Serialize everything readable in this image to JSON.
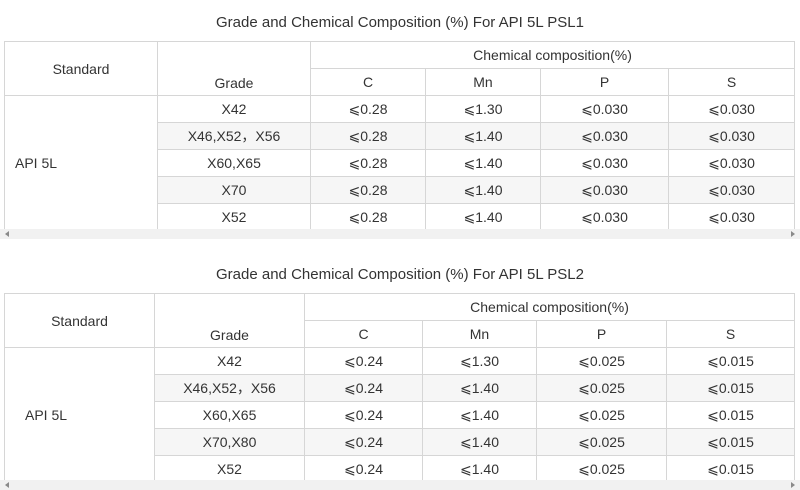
{
  "psl1": {
    "title": "Grade and Chemical Composition (%) For API 5L PSL1",
    "header": {
      "standard": "Standard",
      "grade": "Grade",
      "chemical": "Chemical composition(%)",
      "c": "C",
      "mn": "Mn",
      "p": "P",
      "s": "S"
    },
    "standard_value": "API 5L",
    "rows": [
      {
        "grade": "X42",
        "c": "⩽0.28",
        "mn": "⩽1.30",
        "p": "⩽0.030",
        "s": "⩽0.030"
      },
      {
        "grade": "X46,X52，X56",
        "c": "⩽0.28",
        "mn": "⩽1.40",
        "p": "⩽0.030",
        "s": "⩽0.030"
      },
      {
        "grade": "X60,X65",
        "c": "⩽0.28",
        "mn": "⩽1.40",
        "p": "⩽0.030",
        "s": "⩽0.030"
      },
      {
        "grade": "X70",
        "c": "⩽0.28",
        "mn": "⩽1.40",
        "p": "⩽0.030",
        "s": "⩽0.030"
      },
      {
        "grade": "X52",
        "c": "⩽0.28",
        "mn": "⩽1.40",
        "p": "⩽0.030",
        "s": "⩽0.030"
      }
    ]
  },
  "psl2": {
    "title": "Grade and Chemical Composition (%) For API 5L PSL2",
    "header": {
      "standard": "Standard",
      "grade": "Grade",
      "chemical": "Chemical composition(%)",
      "c": "C",
      "mn": "Mn",
      "p": "P",
      "s": "S"
    },
    "standard_value": "API 5L",
    "rows": [
      {
        "grade": "X42",
        "c": "⩽0.24",
        "mn": "⩽1.30",
        "p": "⩽0.025",
        "s": "⩽0.015"
      },
      {
        "grade": "X46,X52，X56",
        "c": "⩽0.24",
        "mn": "⩽1.40",
        "p": "⩽0.025",
        "s": "⩽0.015"
      },
      {
        "grade": "X60,X65",
        "c": "⩽0.24",
        "mn": "⩽1.40",
        "p": "⩽0.025",
        "s": "⩽0.015"
      },
      {
        "grade": "X70,X80",
        "c": "⩽0.24",
        "mn": "⩽1.40",
        "p": "⩽0.025",
        "s": "⩽0.015"
      },
      {
        "grade": "X52",
        "c": "⩽0.24",
        "mn": "⩽1.40",
        "p": "⩽0.025",
        "s": "⩽0.015"
      }
    ]
  },
  "icons": {
    "scroll_left": "scroll-left-arrow-icon",
    "scroll_right": "scroll-right-arrow-icon"
  }
}
